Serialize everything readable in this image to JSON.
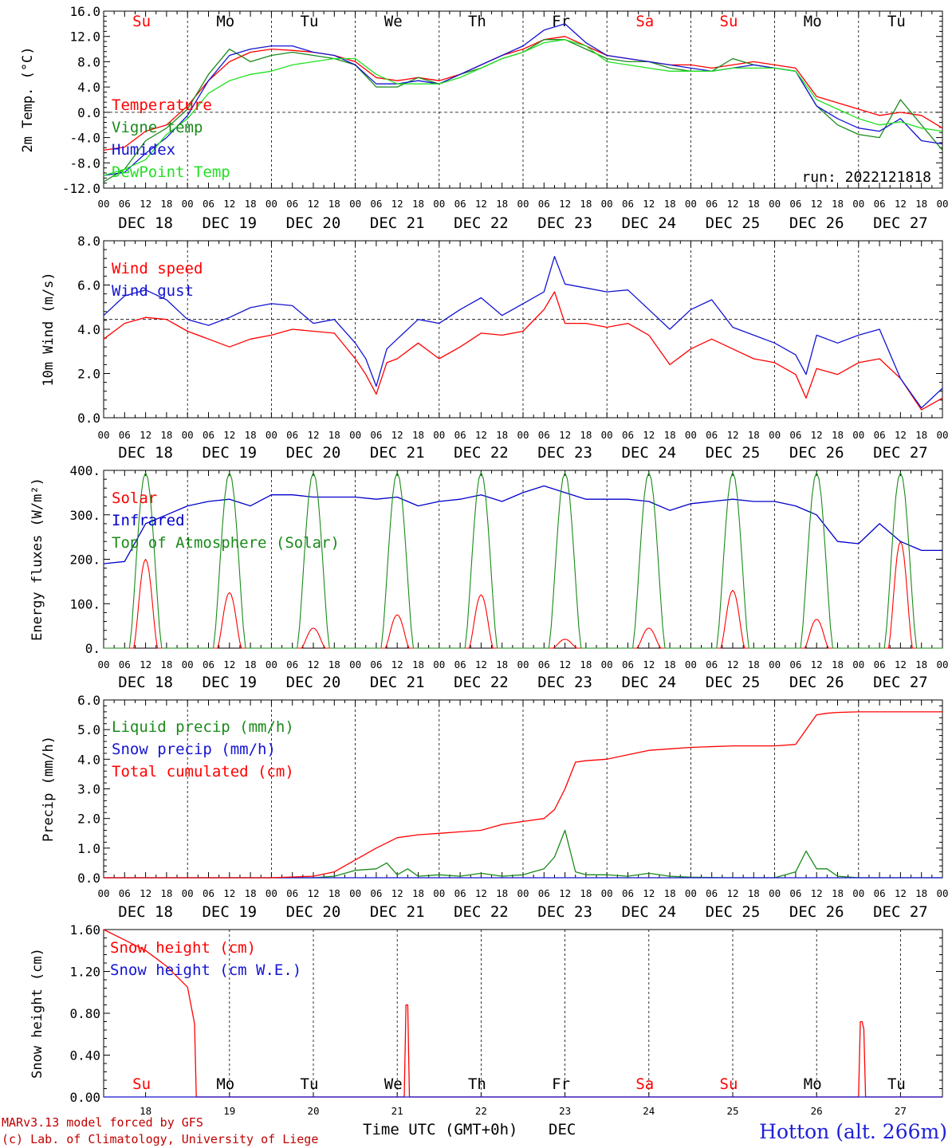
{
  "colors": {
    "red": "#ff0000",
    "darkgreen": "#1a8a1a",
    "blue": "#1414d2",
    "lightgreen": "#22e022",
    "darkblue": "#0000cc",
    "black": "#000000",
    "station": "#1f1fd6",
    "footer": "#c00000"
  },
  "x_axis": {
    "days": [
      "DEC 18",
      "DEC 19",
      "DEC 20",
      "DEC 21",
      "DEC 22",
      "DEC 23",
      "DEC 24",
      "DEC 25",
      "DEC 26",
      "DEC 27"
    ],
    "hour_labels": [
      "00",
      "06",
      "12",
      "18"
    ],
    "final_hour_label": "00",
    "weekdays": [
      {
        "label": "Su",
        "color": "red"
      },
      {
        "label": "Mo",
        "color": "black"
      },
      {
        "label": "Tu",
        "color": "black"
      },
      {
        "label": "We",
        "color": "black"
      },
      {
        "label": "Th",
        "color": "black"
      },
      {
        "label": "Fr",
        "color": "black"
      },
      {
        "label": "Sa",
        "color": "red"
      },
      {
        "label": "Su",
        "color": "red"
      },
      {
        "label": "Mo",
        "color": "black"
      },
      {
        "label": "Tu",
        "color": "black"
      }
    ],
    "bottom_day_numbers": [
      "18",
      "19",
      "20",
      "21",
      "22",
      "23",
      "24",
      "25",
      "26",
      "27"
    ],
    "bottom_label": "Time UTC (GMT+0h)",
    "bottom_month": "DEC"
  },
  "footer": {
    "model_line": "MARv3.13 model forced by GFS",
    "copyright_line": "(c) Lab. of Climatology, University of Liege",
    "station": "Hotton (alt. 266m)"
  },
  "chart_data": [
    {
      "type": "line",
      "ylabel": "2m Temp. (°C)",
      "ylim": [
        -12,
        16
      ],
      "yticks": [
        "16.0",
        "12.0",
        "8.0",
        "4.0",
        "0.0",
        "-4.0",
        "-8.0",
        "-12.0"
      ],
      "hline": 0,
      "run_label": "run: 2022121818",
      "series": [
        {
          "name": "Temperature",
          "color": "red",
          "x": [
            0,
            6,
            12,
            18,
            24,
            30,
            36,
            42,
            48,
            54,
            60,
            66,
            72,
            78,
            84,
            90,
            96,
            102,
            108,
            114,
            120,
            126,
            132,
            138,
            144,
            150,
            156,
            162,
            168,
            174,
            180,
            186,
            192,
            198,
            204,
            210,
            216,
            222,
            228,
            234,
            240
          ],
          "values": [
            -6.0,
            -5.5,
            -3.0,
            -2.0,
            1.0,
            5.0,
            8.0,
            9.5,
            10.0,
            9.8,
            9.5,
            9.0,
            8.0,
            5.5,
            5.0,
            5.5,
            5.0,
            6.0,
            7.5,
            9.0,
            10.0,
            11.5,
            12.0,
            10.5,
            9.0,
            8.5,
            8.0,
            7.5,
            7.5,
            7.0,
            7.5,
            8.0,
            7.5,
            7.0,
            2.5,
            1.5,
            0.5,
            -0.5,
            0.0,
            -0.5,
            -2.5
          ]
        },
        {
          "name": "Vigne temp",
          "color": "darkgreen",
          "x": [
            0,
            6,
            12,
            18,
            24,
            30,
            36,
            42,
            48,
            54,
            60,
            66,
            72,
            78,
            84,
            90,
            96,
            102,
            108,
            114,
            120,
            126,
            132,
            138,
            144,
            150,
            156,
            162,
            168,
            174,
            180,
            186,
            192,
            198,
            204,
            210,
            216,
            222,
            228,
            234,
            240
          ],
          "values": [
            -11.0,
            -9.0,
            -4.5,
            -2.5,
            0.5,
            6.0,
            10.0,
            8.0,
            9.0,
            9.5,
            9.0,
            8.5,
            7.5,
            4.0,
            4.0,
            5.5,
            4.5,
            6.0,
            7.0,
            8.5,
            9.5,
            11.5,
            11.5,
            10.0,
            8.5,
            8.0,
            8.0,
            7.0,
            6.5,
            6.5,
            8.5,
            7.5,
            7.0,
            6.5,
            1.0,
            -2.0,
            -3.5,
            -4.0,
            2.0,
            -2.0,
            -6.0
          ]
        },
        {
          "name": "Humidex",
          "color": "blue",
          "x": [
            0,
            6,
            12,
            18,
            24,
            30,
            36,
            42,
            48,
            54,
            60,
            66,
            72,
            78,
            84,
            90,
            96,
            102,
            108,
            114,
            120,
            126,
            132,
            138,
            144,
            150,
            156,
            162,
            168,
            174,
            180,
            186,
            192,
            198,
            204,
            210,
            216,
            222,
            228,
            234,
            240
          ],
          "values": [
            -10.0,
            -9.5,
            -6.5,
            -4.0,
            -0.5,
            5.0,
            9.0,
            10.0,
            10.5,
            10.5,
            9.5,
            9.0,
            7.5,
            4.5,
            4.5,
            5.0,
            4.5,
            6.0,
            7.5,
            9.0,
            10.5,
            13.0,
            14.0,
            11.0,
            9.0,
            8.5,
            8.0,
            7.5,
            7.0,
            6.5,
            7.0,
            7.5,
            7.0,
            6.5,
            1.0,
            -1.0,
            -2.5,
            -3.0,
            -1.0,
            -4.5,
            -5.0
          ]
        },
        {
          "name": "DewPoint Temp",
          "color": "lightgreen",
          "x": [
            0,
            6,
            12,
            18,
            24,
            30,
            36,
            42,
            48,
            54,
            60,
            66,
            72,
            78,
            84,
            90,
            96,
            102,
            108,
            114,
            120,
            126,
            132,
            138,
            144,
            150,
            156,
            162,
            168,
            174,
            180,
            186,
            192,
            198,
            204,
            210,
            216,
            222,
            228,
            234,
            240
          ],
          "values": [
            -10.0,
            -9.0,
            -7.5,
            -3.5,
            -1.0,
            3.0,
            5.0,
            6.0,
            6.5,
            7.5,
            8.0,
            8.5,
            8.5,
            6.0,
            4.5,
            4.5,
            4.5,
            5.5,
            7.0,
            8.5,
            9.5,
            11.0,
            11.5,
            10.5,
            8.0,
            7.5,
            7.0,
            6.5,
            6.5,
            6.5,
            7.0,
            7.0,
            7.0,
            6.5,
            2.0,
            0.5,
            -1.0,
            -2.0,
            -1.5,
            -2.5,
            -3.0
          ]
        }
      ]
    },
    {
      "type": "line",
      "ylabel": "10m Wind (m/s)",
      "ylim": [
        0,
        9
      ],
      "yticks": [
        "8.0",
        "6.0",
        "4.0",
        "2.0",
        "0.0"
      ],
      "hline": 5,
      "series": [
        {
          "name": "Wind speed",
          "color": "red",
          "x": [
            0,
            6,
            12,
            18,
            24,
            30,
            36,
            42,
            48,
            54,
            60,
            66,
            72,
            75,
            78,
            81,
            84,
            90,
            96,
            102,
            108,
            114,
            120,
            126,
            129,
            132,
            138,
            144,
            150,
            156,
            162,
            168,
            174,
            180,
            186,
            192,
            198,
            201,
            204,
            210,
            216,
            222,
            228,
            234,
            240
          ],
          "values": [
            4.0,
            4.8,
            5.1,
            5.0,
            4.4,
            4.0,
            3.6,
            4.0,
            4.2,
            4.5,
            4.4,
            4.3,
            3.0,
            2.2,
            1.2,
            2.8,
            3.0,
            3.8,
            3.0,
            3.6,
            4.3,
            4.2,
            4.4,
            5.5,
            6.4,
            4.8,
            4.8,
            4.6,
            4.8,
            4.2,
            2.7,
            3.5,
            4.0,
            3.5,
            3.0,
            2.8,
            2.2,
            1.0,
            2.5,
            2.2,
            2.8,
            3.0,
            2.0,
            0.4,
            1.0
          ]
        },
        {
          "name": "Wind gust",
          "color": "blue",
          "x": [
            0,
            6,
            12,
            18,
            24,
            30,
            36,
            42,
            48,
            54,
            60,
            66,
            72,
            75,
            78,
            81,
            84,
            90,
            96,
            102,
            108,
            114,
            120,
            126,
            129,
            132,
            138,
            144,
            150,
            156,
            162,
            168,
            174,
            180,
            186,
            192,
            198,
            201,
            204,
            210,
            216,
            222,
            228,
            234,
            240
          ],
          "values": [
            5.2,
            6.2,
            6.5,
            6.0,
            5.0,
            4.7,
            5.1,
            5.6,
            5.8,
            5.7,
            4.8,
            5.0,
            3.8,
            3.0,
            1.6,
            3.5,
            4.0,
            5.0,
            4.8,
            5.5,
            6.1,
            5.2,
            5.8,
            6.4,
            8.2,
            6.8,
            6.6,
            6.4,
            6.5,
            5.5,
            4.5,
            5.5,
            6.0,
            4.6,
            4.2,
            3.8,
            3.2,
            2.2,
            4.2,
            3.8,
            4.2,
            4.5,
            2.0,
            0.5,
            1.5
          ]
        }
      ]
    },
    {
      "type": "line",
      "ylabel": "Energy fluxes (W/m²)",
      "ylim": [
        0,
        400
      ],
      "yticks": [
        "400.",
        "300.",
        "200.",
        "100.",
        "0."
      ],
      "series": [
        {
          "name": "Solar",
          "color": "red",
          "peaks": [
            200,
            125,
            45,
            75,
            120,
            20,
            45,
            130,
            65,
            240
          ]
        },
        {
          "name": "Infrared",
          "color": "darkblue",
          "x": [
            0,
            6,
            12,
            18,
            24,
            30,
            36,
            42,
            48,
            54,
            60,
            66,
            72,
            78,
            84,
            90,
            96,
            102,
            108,
            114,
            120,
            126,
            132,
            138,
            144,
            150,
            156,
            162,
            168,
            174,
            180,
            186,
            192,
            198,
            204,
            210,
            216,
            222,
            228,
            234,
            240
          ],
          "values": [
            190,
            195,
            280,
            300,
            320,
            330,
            335,
            320,
            345,
            345,
            340,
            340,
            340,
            335,
            340,
            320,
            330,
            335,
            345,
            330,
            350,
            365,
            350,
            335,
            335,
            335,
            330,
            310,
            325,
            330,
            335,
            330,
            330,
            320,
            300,
            240,
            235,
            280,
            240,
            220,
            220
          ]
        },
        {
          "name": "Top of Atmosphere (Solar)",
          "color": "darkgreen",
          "peaks": [
            395,
            395,
            395,
            395,
            395,
            395,
            395,
            395,
            395,
            395
          ]
        }
      ]
    },
    {
      "type": "line",
      "ylabel": "Precip (mm/h)",
      "ylim": [
        0,
        6
      ],
      "yticks": [
        "6.0",
        "5.0",
        "4.0",
        "3.0",
        "2.0",
        "1.0",
        "0.0"
      ],
      "series": [
        {
          "name": "Liquid precip (mm/h)",
          "color": "darkgreen",
          "x": [
            0,
            48,
            60,
            66,
            72,
            78,
            81,
            84,
            87,
            90,
            96,
            102,
            108,
            114,
            120,
            126,
            129,
            132,
            135,
            138,
            144,
            150,
            156,
            162,
            168,
            180,
            192,
            198,
            201,
            204,
            207,
            210,
            216,
            240
          ],
          "values": [
            0,
            0,
            0,
            0.05,
            0.25,
            0.3,
            0.5,
            0.1,
            0.3,
            0.05,
            0.1,
            0.05,
            0.15,
            0.05,
            0.1,
            0.3,
            0.7,
            1.6,
            0.2,
            0.1,
            0.1,
            0.05,
            0.15,
            0.05,
            0.02,
            0.0,
            0.0,
            0.2,
            0.9,
            0.3,
            0.3,
            0.05,
            0,
            0
          ]
        },
        {
          "name": "Snow precip (mm/h)",
          "color": "blue",
          "x": [
            0,
            240
          ],
          "values": [
            0,
            0
          ]
        },
        {
          "name": "Total cumulated (cm)",
          "color": "red",
          "x": [
            0,
            48,
            60,
            66,
            72,
            78,
            84,
            90,
            96,
            102,
            108,
            114,
            120,
            126,
            129,
            132,
            135,
            138,
            144,
            150,
            156,
            162,
            168,
            180,
            192,
            198,
            201,
            204,
            207,
            210,
            216,
            240
          ],
          "values": [
            0,
            0,
            0.05,
            0.2,
            0.6,
            1.0,
            1.35,
            1.45,
            1.5,
            1.55,
            1.6,
            1.8,
            1.9,
            2.0,
            2.3,
            3.0,
            3.9,
            3.95,
            4.0,
            4.15,
            4.3,
            4.35,
            4.4,
            4.45,
            4.45,
            4.5,
            5.0,
            5.5,
            5.55,
            5.58,
            5.6,
            5.6
          ]
        }
      ]
    },
    {
      "type": "line",
      "ylabel": "Snow height (cm)",
      "ylim": [
        0,
        1.6
      ],
      "yticks": [
        "1.60",
        "1.20",
        "0.80",
        "0.40",
        "0.00"
      ],
      "series": [
        {
          "name": "Snow height (cm)",
          "color": "red",
          "x": [
            0,
            6,
            12,
            18,
            24,
            26,
            26.5,
            27,
            84,
            86,
            86.5,
            87,
            87.5,
            88,
            216,
            216.5,
            217,
            217.5,
            218,
            240
          ],
          "values": [
            1.6,
            1.5,
            1.4,
            1.25,
            1.05,
            0.7,
            0,
            0,
            0,
            0,
            0.88,
            0.88,
            0,
            0,
            0,
            0.72,
            0.72,
            0.65,
            0,
            0
          ]
        },
        {
          "name": "Snow height (cm W.E.)",
          "color": "blue",
          "x": [
            0,
            240
          ],
          "values": [
            0,
            0
          ]
        }
      ]
    }
  ]
}
